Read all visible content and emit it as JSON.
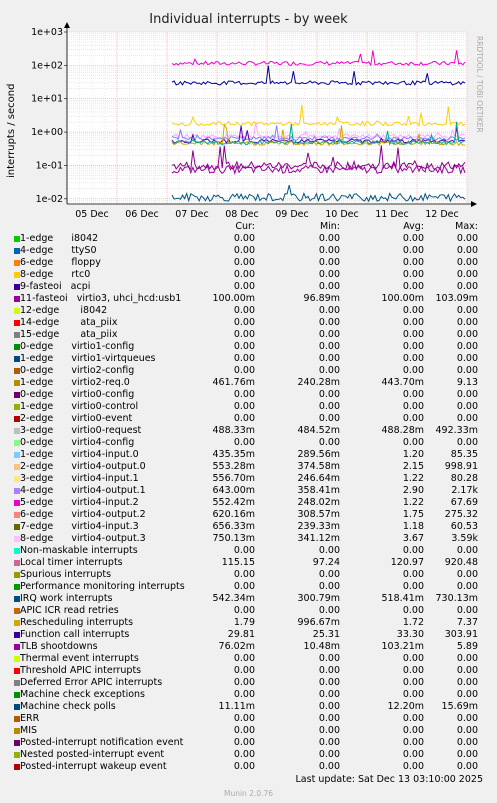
{
  "chart_data": {
    "type": "line",
    "title": "Individual interrupts - by week",
    "ylabel": "interrupts / second",
    "side_label": "RRDTOOL / TOBI OETIKER",
    "y_scale": "log",
    "ylim": [
      0.007,
      1000
    ],
    "y_ticks": [
      "1e-02",
      "1e-01",
      "1e+00",
      "1e+01",
      "1e+02",
      "1e+03"
    ],
    "x_ticks": [
      "05 Dec",
      "06 Dec",
      "07 Dec",
      "08 Dec",
      "09 Dec",
      "10 Dec",
      "11 Dec",
      "12 Dec"
    ],
    "data_start_label": "07 Dec",
    "grid": true,
    "series_levels": [
      {
        "name": "Local timer interrupts",
        "value": 115.15,
        "color": "#ee00cc"
      },
      {
        "name": "11-fasteoi virtio3, uhci_hcd:usb1",
        "value": 0.1,
        "color": "#880088"
      },
      {
        "name": "8-edge virtio4-output.3",
        "value": 0.75,
        "color": "#ffa8ff"
      },
      {
        "name": "TLB shootdowns",
        "value": 0.076,
        "color": "#990099"
      },
      {
        "name": "Function call interrupts",
        "value": 29.81,
        "color": "#000099"
      },
      {
        "name": "Machine check polls",
        "value": 0.0111,
        "color": "#005580"
      },
      {
        "name": "Rescheduling interrupts",
        "value": 1.79,
        "color": "#ffd000"
      },
      {
        "name": "4-edge virtio4-output.1",
        "value": 0.643,
        "color": "#8080ff"
      },
      {
        "name": "IRQ work interrupts",
        "value": 0.542,
        "color": "#5500aa"
      },
      {
        "name": "1-edge virtio2-req.0",
        "value": 0.462,
        "color": "#ccaa00"
      },
      {
        "name": "3-edge virtio0-request",
        "value": 0.488,
        "color": "#00aa99"
      }
    ]
  },
  "legend": {
    "headers": {
      "cur": "Cur:",
      "min": "Min:",
      "avg": "Avg:",
      "max": "Max:"
    },
    "rows": [
      {
        "name": "1-edge      i8042",
        "color": "#00cc00",
        "cur": "0.00",
        "min": "0.00",
        "avg": "0.00",
        "max": "0.00"
      },
      {
        "name": "4-edge      ttyS0",
        "color": "#0066b3",
        "cur": "0.00",
        "min": "0.00",
        "avg": "0.00",
        "max": "0.00"
      },
      {
        "name": "6-edge      floppy",
        "color": "#ff8000",
        "cur": "0.00",
        "min": "0.00",
        "avg": "0.00",
        "max": "0.00"
      },
      {
        "name": "8-edge      rtc0",
        "color": "#ffcc00",
        "cur": "0.00",
        "min": "0.00",
        "avg": "0.00",
        "max": "0.00"
      },
      {
        "name": "9-fasteoi   acpi",
        "color": "#330099",
        "cur": "0.00",
        "min": "0.00",
        "avg": "0.00",
        "max": "0.00"
      },
      {
        "name": "11-fasteoi   virtio3, uhci_hcd:usb1",
        "color": "#990099",
        "cur": "100.00m",
        "min": "96.89m",
        "avg": "100.00m",
        "max": "103.09m"
      },
      {
        "name": "12-edge       i8042",
        "color": "#ccff00",
        "cur": "0.00",
        "min": "0.00",
        "avg": "0.00",
        "max": "0.00"
      },
      {
        "name": "14-edge       ata_piix",
        "color": "#ff0000",
        "cur": "0.00",
        "min": "0.00",
        "avg": "0.00",
        "max": "0.00"
      },
      {
        "name": "15-edge       ata_piix",
        "color": "#808080",
        "cur": "0.00",
        "min": "0.00",
        "avg": "0.00",
        "max": "0.00"
      },
      {
        "name": "0-edge      virtio1-config",
        "color": "#008f00",
        "cur": "0.00",
        "min": "0.00",
        "avg": "0.00",
        "max": "0.00"
      },
      {
        "name": "1-edge      virtio1-virtqueues",
        "color": "#00487d",
        "cur": "0.00",
        "min": "0.00",
        "avg": "0.00",
        "max": "0.00"
      },
      {
        "name": "0-edge      virtio2-config",
        "color": "#b35a00",
        "cur": "0.00",
        "min": "0.00",
        "avg": "0.00",
        "max": "0.00"
      },
      {
        "name": "1-edge      virtio2-req.0",
        "color": "#b38f00",
        "cur": "461.76m",
        "min": "240.28m",
        "avg": "443.70m",
        "max": "9.13"
      },
      {
        "name": "0-edge      virtio0-config",
        "color": "#6b006b",
        "cur": "0.00",
        "min": "0.00",
        "avg": "0.00",
        "max": "0.00"
      },
      {
        "name": "1-edge      virtio0-control",
        "color": "#8fb300",
        "cur": "0.00",
        "min": "0.00",
        "avg": "0.00",
        "max": "0.00"
      },
      {
        "name": "2-edge      virtio0-event",
        "color": "#b30000",
        "cur": "0.00",
        "min": "0.00",
        "avg": "0.00",
        "max": "0.00"
      },
      {
        "name": "3-edge      virtio0-request",
        "color": "#bebebe",
        "cur": "488.33m",
        "min": "484.52m",
        "avg": "488.28m",
        "max": "492.33m"
      },
      {
        "name": "0-edge      virtio4-config",
        "color": "#80ff80",
        "cur": "0.00",
        "min": "0.00",
        "avg": "0.00",
        "max": "0.00"
      },
      {
        "name": "1-edge      virtio4-input.0",
        "color": "#80c9ff",
        "cur": "435.35m",
        "min": "289.56m",
        "avg": "1.20",
        "max": "85.35"
      },
      {
        "name": "2-edge      virtio4-output.0",
        "color": "#ffc080",
        "cur": "553.28m",
        "min": "374.58m",
        "avg": "2.15",
        "max": "998.91"
      },
      {
        "name": "3-edge      virtio4-input.1",
        "color": "#ffe680",
        "cur": "556.70m",
        "min": "246.64m",
        "avg": "1.22",
        "max": "80.28"
      },
      {
        "name": "4-edge      virtio4-output.1",
        "color": "#aa80ff",
        "cur": "643.00m",
        "min": "358.41m",
        "avg": "2.90",
        "max": "2.17k"
      },
      {
        "name": "5-edge      virtio4-input.2",
        "color": "#ee00cc",
        "cur": "552.42m",
        "min": "248.02m",
        "avg": "1.22",
        "max": "67.69"
      },
      {
        "name": "6-edge      virtio4-output.2",
        "color": "#ff8080",
        "cur": "620.16m",
        "min": "308.57m",
        "avg": "1.75",
        "max": "275.32"
      },
      {
        "name": "7-edge      virtio4-input.3",
        "color": "#666600",
        "cur": "656.33m",
        "min": "239.33m",
        "avg": "1.18",
        "max": "60.53"
      },
      {
        "name": "8-edge      virtio4-output.3",
        "color": "#ffbfff",
        "cur": "750.13m",
        "min": "341.12m",
        "avg": "3.67",
        "max": "3.59k"
      },
      {
        "name": "Non-maskable interrupts",
        "color": "#00ffcc",
        "cur": "0.00",
        "min": "0.00",
        "avg": "0.00",
        "max": "0.00"
      },
      {
        "name": "Local timer interrupts",
        "color": "#cc6699",
        "cur": "115.15",
        "min": "97.24",
        "avg": "120.97",
        "max": "920.48"
      },
      {
        "name": "Spurious interrupts",
        "color": "#999900",
        "cur": "0.00",
        "min": "0.00",
        "avg": "0.00",
        "max": "0.00"
      },
      {
        "name": "Performance monitoring interrupts",
        "color": "#009900",
        "cur": "0.00",
        "min": "0.00",
        "avg": "0.00",
        "max": "0.00"
      },
      {
        "name": "IRQ work interrupts",
        "color": "#004d80",
        "cur": "542.34m",
        "min": "300.79m",
        "avg": "518.41m",
        "max": "730.13m"
      },
      {
        "name": "APIC ICR read retries",
        "color": "#cc6600",
        "cur": "0.00",
        "min": "0.00",
        "avg": "0.00",
        "max": "0.00"
      },
      {
        "name": "Rescheduling interrupts",
        "color": "#ccaa00",
        "cur": "1.79",
        "min": "996.67m",
        "avg": "1.72",
        "max": "7.37"
      },
      {
        "name": "Function call interrupts",
        "color": "#330099",
        "cur": "29.81",
        "min": "25.31",
        "avg": "33.30",
        "max": "303.91"
      },
      {
        "name": "TLB shootdowns",
        "color": "#990099",
        "cur": "76.02m",
        "min": "10.48m",
        "avg": "103.21m",
        "max": "5.89"
      },
      {
        "name": "Thermal event interrupts",
        "color": "#ccff00",
        "cur": "0.00",
        "min": "0.00",
        "avg": "0.00",
        "max": "0.00"
      },
      {
        "name": "Threshold APIC interrupts",
        "color": "#ff0000",
        "cur": "0.00",
        "min": "0.00",
        "avg": "0.00",
        "max": "0.00"
      },
      {
        "name": "Deferred Error APIC interrupts",
        "color": "#808080",
        "cur": "0.00",
        "min": "0.00",
        "avg": "0.00",
        "max": "0.00"
      },
      {
        "name": "Machine check exceptions",
        "color": "#008f00",
        "cur": "0.00",
        "min": "0.00",
        "avg": "0.00",
        "max": "0.00"
      },
      {
        "name": "Machine check polls",
        "color": "#00487d",
        "cur": "11.11m",
        "min": "0.00",
        "avg": "12.20m",
        "max": "15.69m"
      },
      {
        "name": "ERR",
        "color": "#b35a00",
        "cur": "0.00",
        "min": "0.00",
        "avg": "0.00",
        "max": "0.00"
      },
      {
        "name": "MIS",
        "color": "#b38f00",
        "cur": "0.00",
        "min": "0.00",
        "avg": "0.00",
        "max": "0.00"
      },
      {
        "name": "Posted-interrupt notification event",
        "color": "#6b006b",
        "cur": "0.00",
        "min": "0.00",
        "avg": "0.00",
        "max": "0.00"
      },
      {
        "name": "Nested posted-interrupt event",
        "color": "#8fb300",
        "cur": "0.00",
        "min": "0.00",
        "avg": "0.00",
        "max": "0.00"
      },
      {
        "name": "Posted-interrupt wakeup event",
        "color": "#b30000",
        "cur": "0.00",
        "min": "0.00",
        "avg": "0.00",
        "max": "0.00"
      }
    ]
  },
  "footer": {
    "last_update": "Last update: Sat Dec 13 03:10:00 2025",
    "munin": "Munin 2.0.76"
  }
}
